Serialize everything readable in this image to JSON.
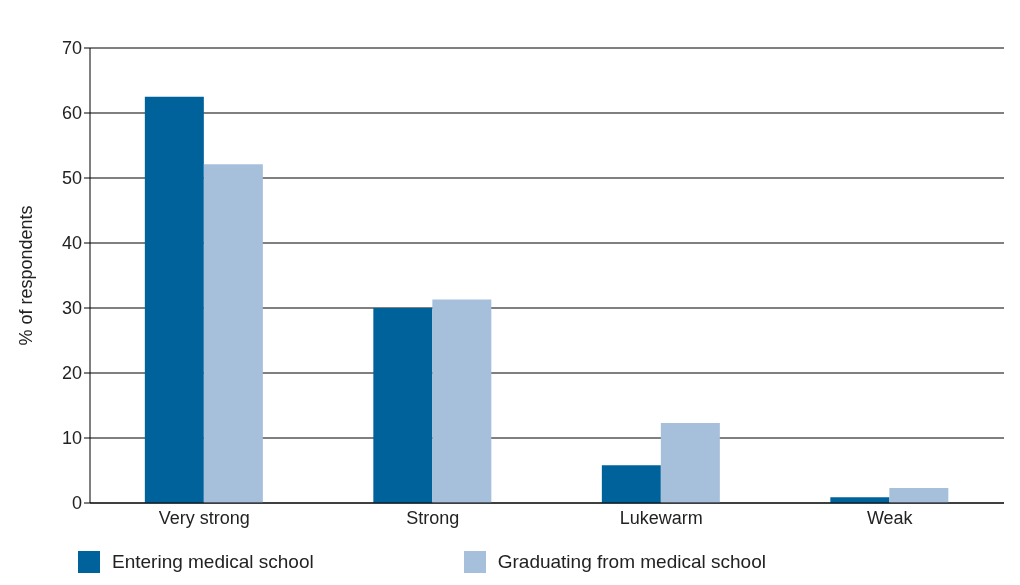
{
  "chart_data": {
    "type": "bar",
    "ylabel": "% of respondents",
    "categories": [
      "Very strong",
      "Strong",
      "Lukewarm",
      "Weak"
    ],
    "series": [
      {
        "name": "Entering medical school",
        "color": "#00629b",
        "values": [
          62.5,
          30,
          5.8,
          0.9
        ]
      },
      {
        "name": "Graduating from medical school",
        "color": "#a6bfdb",
        "values": [
          52.1,
          31.3,
          12.3,
          2.3
        ]
      }
    ],
    "ylim": [
      0,
      70
    ],
    "yticks": [
      0,
      10,
      20,
      30,
      40,
      50,
      60,
      70
    ],
    "grid": "y",
    "legend": "bottom"
  }
}
